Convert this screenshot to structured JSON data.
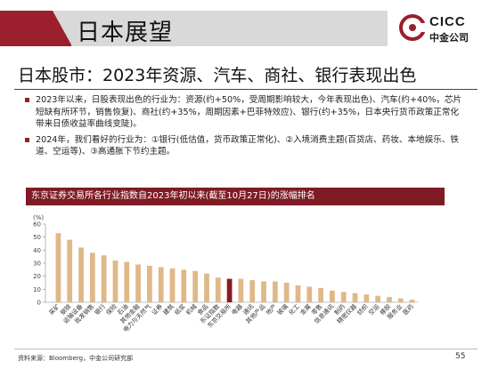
{
  "header": {
    "title": "日本展望",
    "logo_text": "CICC",
    "logo_subtext": "中金公司"
  },
  "headline": "日本股市：2023年资源、汽车、商社、银行表现出色",
  "bullets": [
    "2023年以来，日股表现出色的行业为：资源(约+50%，受周期影响较大，今年表现出色)、汽车(约+40%，芯片短缺有所环节，销售恢复)、商社(约+35%，周期因素+巴菲特效应)、银行(约+35%，日本央行货币政策正常化带来日债收益率曲线变陡)。",
    "2024年，我们看好的行业为：①银行(低估值，货币政策正常化)、②入境消费主题(百货店、药妆、本地娱乐、铁道、空运等)、③高通胀下节约主题。"
  ],
  "chart_data": {
    "type": "bar",
    "title": "东京证券交易所各行业指数自2023年初以来(截至10月27日)的涨幅排名",
    "ylabel": "(%)",
    "ylim": [
      0,
      60
    ],
    "yticks": [
      0,
      10,
      20,
      30,
      40,
      50,
      60
    ],
    "grid": false,
    "legend": "none",
    "categories": [
      "采矿",
      "钢铁",
      "运输设备",
      "批发销售",
      "银行",
      "保险",
      "石油",
      "其他金融",
      "电力与天然气",
      "证券",
      "建筑",
      "纸浆",
      "机械",
      "食品",
      "东证指数",
      "东京交易所",
      "电器",
      "通讯",
      "其他产品",
      "地产",
      "玻璃",
      "化工",
      "金属",
      "零售",
      "信息通讯",
      "制药",
      "精密仪器",
      "纺织",
      "空运",
      "橡胶",
      "服务业",
      "医药"
    ],
    "values": [
      53,
      48,
      42,
      38,
      36,
      32,
      31,
      29,
      28,
      27,
      26,
      25,
      24,
      22,
      19,
      18,
      18,
      17,
      16,
      16,
      15,
      13,
      12,
      11,
      9,
      8,
      7,
      6,
      5,
      4,
      3,
      2
    ],
    "highlight_index": 15,
    "colors": {
      "bar": "#e0b888",
      "highlight": "#8b1a22"
    }
  },
  "footer": {
    "source": "资料来源：Bloomberg，中金公司研究部",
    "page_number": "55"
  },
  "colors": {
    "accent": "#9b1f2c",
    "band_grey": "#d9d9d9"
  }
}
